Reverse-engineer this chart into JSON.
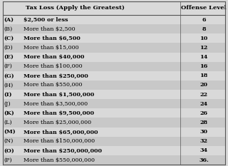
{
  "title_left": "Tax Loss (Apply the Greatest)",
  "title_right": "Offense Level",
  "rows": [
    [
      "(A)",
      "$2,500 or less",
      "6"
    ],
    [
      "(B)",
      "More than $2,500",
      "8"
    ],
    [
      "(C)",
      "More than $6,500",
      "10"
    ],
    [
      "(D)",
      "More than $15,000",
      "12"
    ],
    [
      "(E)",
      "More than $40,000",
      "14"
    ],
    [
      "(F)",
      "More than $100,000",
      "16"
    ],
    [
      "(G)",
      "More than $250,000",
      "18"
    ],
    [
      "(H)",
      "More than $550,000",
      "20"
    ],
    [
      "(I)",
      "More than $1,500,000",
      "22"
    ],
    [
      "(J)",
      "More than $3,500,000",
      "24"
    ],
    [
      "(K)",
      "More than $9,500,000",
      "26"
    ],
    [
      "(L)",
      "More than $25,000,000",
      "28"
    ],
    [
      "(M)",
      "More than $65,000,000",
      "30"
    ],
    [
      "(N)",
      "More than $150,000,000",
      "32"
    ],
    [
      "(O)",
      "More than $250,000,000",
      "34"
    ],
    [
      "(P)",
      "More than $550,000,000",
      "36."
    ]
  ],
  "bg_color_light": "#d9d9d9",
  "bg_color_dark": "#c8c8c8",
  "border_color": "#555555",
  "text_color": "#000000",
  "fig_width": 3.2,
  "fig_height": 2.33,
  "dpi": 100
}
